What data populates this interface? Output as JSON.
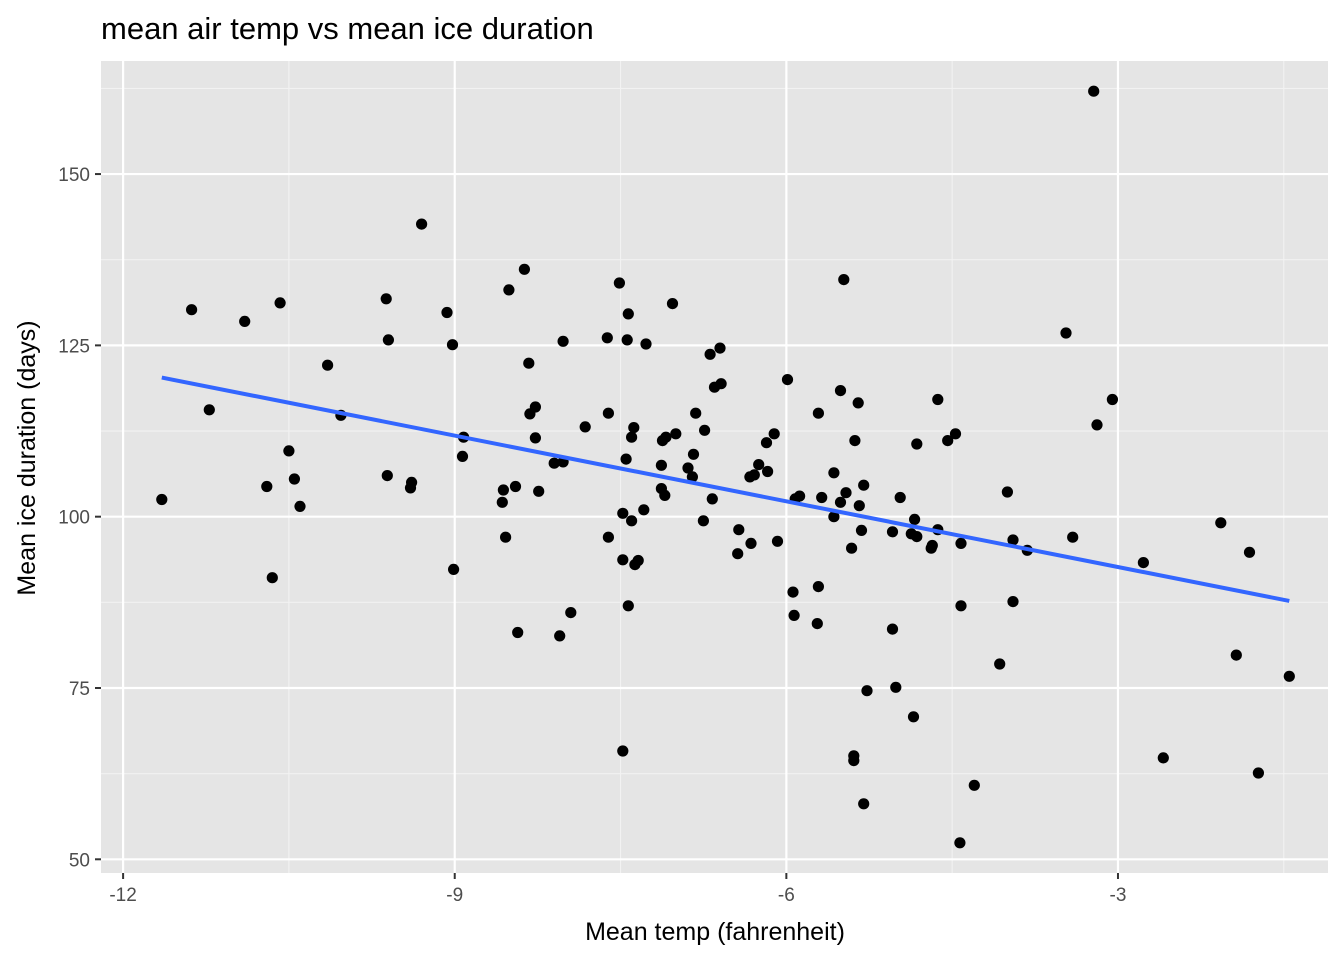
{
  "chart_data": {
    "type": "scatter",
    "title": "mean air temp vs mean ice duration",
    "xlabel": "Mean temp (fahrenheit)",
    "ylabel": "Mean ice duration (days)",
    "xlim": [
      -12.2,
      -1.1
    ],
    "ylim": [
      48,
      166.5
    ],
    "x_ticks": [
      -12,
      -9,
      -6,
      -3
    ],
    "x_tick_labels": [
      "-12",
      "-9",
      "-6",
      "-3"
    ],
    "y_ticks": [
      50,
      75,
      100,
      125,
      150
    ],
    "y_tick_labels": [
      "50",
      "75",
      "100",
      "125",
      "150"
    ],
    "grid": true,
    "background": "#e5e5e5",
    "point_color": "#000000",
    "trend_color": "#3366ff",
    "trend_line": [
      [
        -11.65,
        120.3
      ],
      [
        -1.45,
        87.7
      ]
    ],
    "points": [
      [
        -11.65,
        102.5
      ],
      [
        -11.38,
        130.2
      ],
      [
        -11.22,
        115.6
      ],
      [
        -10.9,
        128.5
      ],
      [
        -10.7,
        104.4
      ],
      [
        -10.65,
        91.1
      ],
      [
        -10.58,
        131.2
      ],
      [
        -10.5,
        109.6
      ],
      [
        -10.45,
        105.5
      ],
      [
        -10.4,
        101.5
      ],
      [
        -10.15,
        122.1
      ],
      [
        -10.03,
        114.8
      ],
      [
        -9.62,
        131.8
      ],
      [
        -9.6,
        125.8
      ],
      [
        -9.61,
        106.0
      ],
      [
        -9.4,
        104.2
      ],
      [
        -9.39,
        105.0
      ],
      [
        -9.3,
        142.7
      ],
      [
        -9.07,
        129.8
      ],
      [
        -9.02,
        125.1
      ],
      [
        -9.01,
        92.3
      ],
      [
        -8.93,
        108.8
      ],
      [
        -8.92,
        111.6
      ],
      [
        -8.57,
        102.1
      ],
      [
        -8.56,
        103.9
      ],
      [
        -8.54,
        97.0
      ],
      [
        -8.51,
        133.1
      ],
      [
        -8.45,
        104.4
      ],
      [
        -8.43,
        83.1
      ],
      [
        -8.37,
        136.1
      ],
      [
        -8.33,
        122.4
      ],
      [
        -8.32,
        115.0
      ],
      [
        -8.27,
        116.0
      ],
      [
        -8.27,
        111.5
      ],
      [
        -8.24,
        103.7
      ],
      [
        -8.1,
        107.8
      ],
      [
        -8.05,
        82.6
      ],
      [
        -8.02,
        125.6
      ],
      [
        -8.02,
        108.0
      ],
      [
        -7.95,
        86.0
      ],
      [
        -7.82,
        113.1
      ],
      [
        -7.62,
        126.1
      ],
      [
        -7.61,
        115.1
      ],
      [
        -7.61,
        97.0
      ],
      [
        -7.51,
        134.1
      ],
      [
        -7.48,
        100.5
      ],
      [
        -7.48,
        93.7
      ],
      [
        -7.48,
        65.8
      ],
      [
        -7.45,
        108.4
      ],
      [
        -7.44,
        125.8
      ],
      [
        -7.43,
        129.6
      ],
      [
        -7.43,
        87.0
      ],
      [
        -7.4,
        111.6
      ],
      [
        -7.4,
        99.4
      ],
      [
        -7.38,
        113.0
      ],
      [
        -7.37,
        93.0
      ],
      [
        -7.34,
        93.6
      ],
      [
        -7.29,
        101.0
      ],
      [
        -7.27,
        125.2
      ],
      [
        -7.13,
        107.5
      ],
      [
        -7.13,
        104.1
      ],
      [
        -7.12,
        111.1
      ],
      [
        -7.1,
        103.1
      ],
      [
        -7.09,
        111.6
      ],
      [
        -7.03,
        131.1
      ],
      [
        -7.0,
        112.1
      ],
      [
        -6.89,
        107.1
      ],
      [
        -6.85,
        105.8
      ],
      [
        -6.84,
        109.1
      ],
      [
        -6.82,
        115.1
      ],
      [
        -6.75,
        99.4
      ],
      [
        -6.74,
        112.6
      ],
      [
        -6.69,
        123.7
      ],
      [
        -6.67,
        102.6
      ],
      [
        -6.65,
        118.9
      ],
      [
        -6.6,
        124.6
      ],
      [
        -6.59,
        119.4
      ],
      [
        -6.44,
        94.6
      ],
      [
        -6.43,
        98.1
      ],
      [
        -6.32,
        96.1
      ],
      [
        -6.33,
        105.8
      ],
      [
        -6.29,
        106.1
      ],
      [
        -6.25,
        107.6
      ],
      [
        -6.17,
        106.6
      ],
      [
        -6.18,
        110.8
      ],
      [
        -6.11,
        112.1
      ],
      [
        -6.08,
        96.4
      ],
      [
        -5.99,
        120.0
      ],
      [
        -5.93,
        85.6
      ],
      [
        -5.94,
        89.0
      ],
      [
        -5.92,
        102.6
      ],
      [
        -5.88,
        103.0
      ],
      [
        -5.71,
        115.1
      ],
      [
        -5.71,
        89.8
      ],
      [
        -5.72,
        84.4
      ],
      [
        -5.68,
        102.8
      ],
      [
        -5.57,
        100.0
      ],
      [
        -5.57,
        106.4
      ],
      [
        -5.51,
        118.4
      ],
      [
        -5.51,
        102.1
      ],
      [
        -5.48,
        134.6
      ],
      [
        -5.46,
        103.5
      ],
      [
        -5.41,
        95.4
      ],
      [
        -5.38,
        111.1
      ],
      [
        -5.39,
        65.1
      ],
      [
        -5.39,
        64.4
      ],
      [
        -5.35,
        116.6
      ],
      [
        -5.34,
        101.6
      ],
      [
        -5.32,
        98.0
      ],
      [
        -5.3,
        104.6
      ],
      [
        -5.3,
        58.1
      ],
      [
        -5.27,
        74.6
      ],
      [
        -5.04,
        83.6
      ],
      [
        -5.04,
        97.8
      ],
      [
        -5.01,
        75.1
      ],
      [
        -4.97,
        102.8
      ],
      [
        -4.87,
        97.5
      ],
      [
        -4.85,
        70.8
      ],
      [
        -4.84,
        99.6
      ],
      [
        -4.82,
        97.1
      ],
      [
        -4.82,
        110.6
      ],
      [
        -4.69,
        95.4
      ],
      [
        -4.68,
        95.8
      ],
      [
        -4.63,
        117.1
      ],
      [
        -4.63,
        98.1
      ],
      [
        -4.54,
        111.1
      ],
      [
        -4.47,
        112.1
      ],
      [
        -4.43,
        52.4
      ],
      [
        -4.42,
        87.0
      ],
      [
        -4.42,
        96.1
      ],
      [
        -4.3,
        60.8
      ],
      [
        -4.07,
        78.5
      ],
      [
        -4.0,
        103.6
      ],
      [
        -3.95,
        87.6
      ],
      [
        -3.95,
        96.6
      ],
      [
        -3.82,
        95.1
      ],
      [
        -3.47,
        126.8
      ],
      [
        -3.41,
        97.0
      ],
      [
        -3.22,
        162.1
      ],
      [
        -3.19,
        113.4
      ],
      [
        -3.05,
        117.1
      ],
      [
        -2.77,
        93.3
      ],
      [
        -2.59,
        64.8
      ],
      [
        -2.07,
        99.1
      ],
      [
        -1.93,
        79.8
      ],
      [
        -1.81,
        94.8
      ],
      [
        -1.73,
        62.6
      ],
      [
        -1.45,
        76.7
      ]
    ]
  }
}
